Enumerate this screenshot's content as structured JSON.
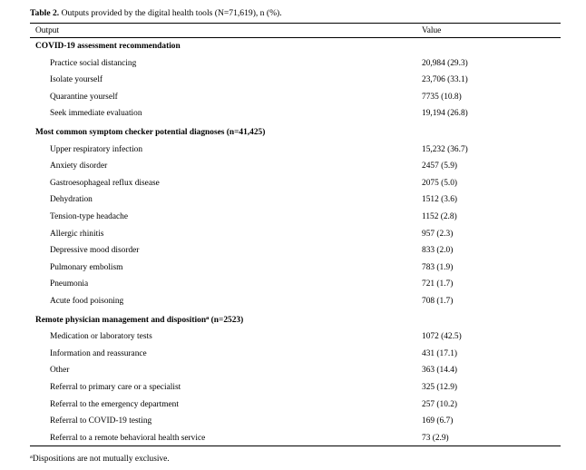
{
  "caption": {
    "label": "Table 2.",
    "text": " Outputs provided by the digital health tools (N=71,619), n (%)."
  },
  "header": {
    "output": "Output",
    "value": "Value"
  },
  "sections": [
    {
      "title": "COVID-19 assessment recommendation",
      "sup": "",
      "suffix": "",
      "rows": [
        {
          "label": "Practice social distancing",
          "value": "20,984 (29.3)"
        },
        {
          "label": "Isolate yourself",
          "value": "23,706 (33.1)"
        },
        {
          "label": "Quarantine yourself",
          "value": "7735 (10.8)"
        },
        {
          "label": "Seek immediate evaluation",
          "value": "19,194 (26.8)"
        }
      ]
    },
    {
      "title": "Most common symptom checker potential diagnoses (n=41,425)",
      "sup": "",
      "suffix": "",
      "rows": [
        {
          "label": "Upper respiratory infection",
          "value": "15,232 (36.7)"
        },
        {
          "label": "Anxiety disorder",
          "value": "2457 (5.9)"
        },
        {
          "label": "Gastroesophageal reflux disease",
          "value": "2075 (5.0)"
        },
        {
          "label": "Dehydration",
          "value": "1512 (3.6)"
        },
        {
          "label": "Tension-type headache",
          "value": "1152 (2.8)"
        },
        {
          "label": "Allergic rhinitis",
          "value": "957 (2.3)"
        },
        {
          "label": "Depressive mood disorder",
          "value": "833 (2.0)"
        },
        {
          "label": "Pulmonary embolism",
          "value": "783 (1.9)"
        },
        {
          "label": "Pneumonia",
          "value": "721 (1.7)"
        },
        {
          "label": "Acute food poisoning",
          "value": "708 (1.7)"
        }
      ]
    },
    {
      "title": "Remote physician management and disposition",
      "sup": "a",
      "suffix": " (n=2523)",
      "rows": [
        {
          "label": "Medication or laboratory tests",
          "value": "1072 (42.5)"
        },
        {
          "label": "Information and reassurance",
          "value": "431 (17.1)"
        },
        {
          "label": "Other",
          "value": "363 (14.4)"
        },
        {
          "label": "Referral to primary care or a specialist",
          "value": "325 (12.9)"
        },
        {
          "label": "Referral to the emergency department",
          "value": "257 (10.2)"
        },
        {
          "label": "Referral to COVID-19 testing",
          "value": "169 (6.7)"
        },
        {
          "label": "Referral to a remote behavioral health service",
          "value": "73 (2.9)"
        }
      ]
    }
  ],
  "footnote": {
    "sup": "a",
    "text": "Dispositions are not mutually exclusive."
  }
}
